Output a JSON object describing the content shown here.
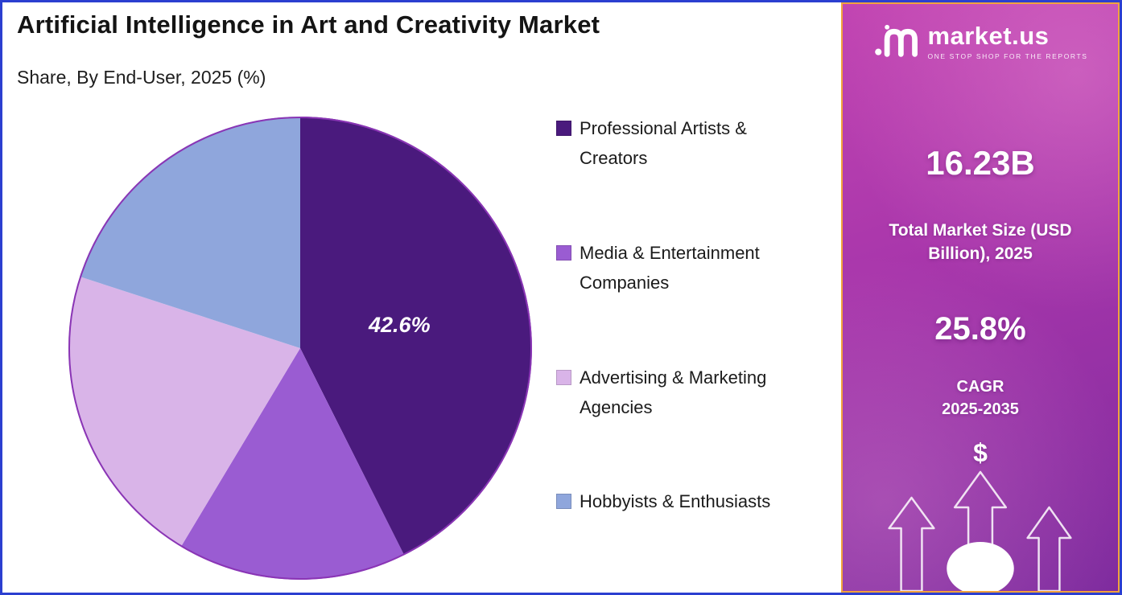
{
  "header": {
    "title": "Artificial Intelligence in Art and Creativity Market",
    "subtitle": "Share, By End-User, 2025 (%)"
  },
  "chart_data": {
    "type": "pie",
    "title": "Artificial Intelligence in Art and Creativity Market",
    "subtitle": "Share, By End-User, 2025 (%)",
    "labels": [
      "Professional Artists & Creators",
      "Media & Entertainment Companies",
      "Advertising & Marketing Agencies",
      "Hobbyists & Enthusiasts"
    ],
    "values": [
      42.6,
      16.0,
      21.4,
      20.0
    ],
    "colors": [
      "#4A1A7D",
      "#9A5CD2",
      "#D9B4E8",
      "#8FA6DC"
    ],
    "data_labels": [
      "42.6%",
      "",
      "",
      ""
    ],
    "start_angle_deg": 0,
    "direction": "clockwise",
    "legend_position": "right"
  },
  "sidebar": {
    "logo_text": "market.us",
    "logo_tagline": "ONE STOP SHOP FOR THE REPORTS",
    "market_size_value": "16.23B",
    "market_size_label": "Total Market Size (USD Billion), 2025",
    "cagr_value": "25.8%",
    "cagr_label": "CAGR",
    "cagr_period": "2025-2035",
    "dollar_symbol": "$"
  },
  "colors": {
    "outer_border": "#2b3fd0",
    "sidebar_border": "#f2a33c",
    "sidebar_gradient_top": "#c245b2",
    "sidebar_gradient_bottom": "#7e2b9e",
    "pie_outline": "#8a35b5"
  }
}
